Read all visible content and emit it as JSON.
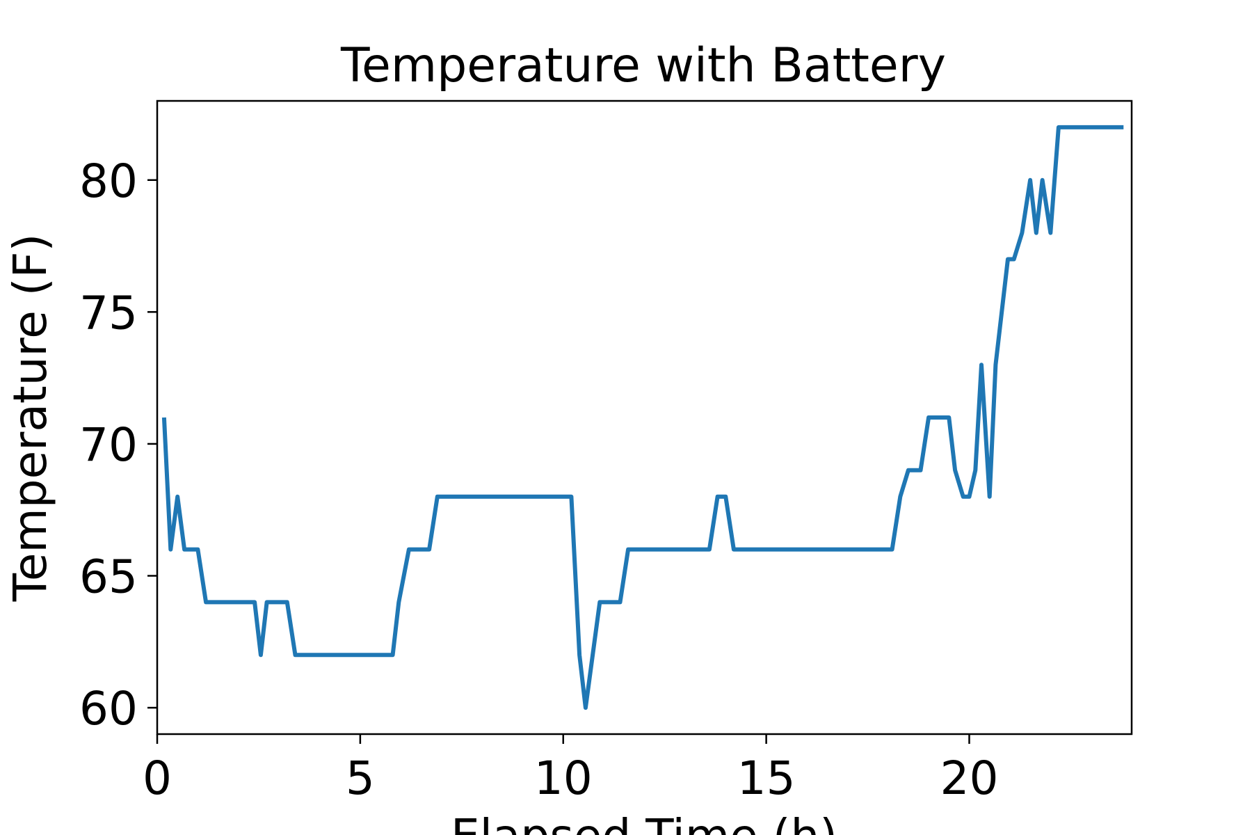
{
  "chart_data": {
    "type": "line",
    "title": "Temperature with Battery",
    "xlabel": "Elapsed Time (h)",
    "ylabel": "Temperature (F)",
    "xlim": [
      0,
      24
    ],
    "ylim": [
      59,
      83
    ],
    "xticks": [
      0,
      5,
      10,
      15,
      20
    ],
    "yticks": [
      60,
      65,
      70,
      75,
      80
    ],
    "grid": false,
    "legend": "none",
    "series": [
      {
        "color": "#1f77b4",
        "x": [
          0.17,
          0.33,
          0.5,
          0.67,
          1.0,
          1.2,
          1.5,
          2.0,
          2.4,
          2.55,
          2.7,
          3.0,
          3.2,
          3.4,
          4.0,
          5.0,
          5.8,
          5.95,
          6.2,
          6.5,
          6.7,
          6.9,
          7.5,
          8.5,
          9.5,
          10.2,
          10.4,
          10.55,
          10.9,
          11.0,
          11.4,
          11.6,
          12.0,
          13.0,
          13.6,
          13.8,
          14.0,
          14.2,
          15.0,
          16.0,
          17.0,
          18.1,
          18.3,
          18.5,
          18.8,
          19.0,
          19.5,
          19.65,
          19.85,
          20.0,
          20.15,
          20.3,
          20.5,
          20.65,
          20.95,
          21.1,
          21.3,
          21.5,
          21.65,
          21.8,
          22.0,
          22.2,
          22.5,
          23.0,
          23.8
        ],
        "y": [
          71,
          66,
          68,
          66,
          66,
          64,
          64,
          64,
          64,
          62,
          64,
          64,
          64,
          62,
          62,
          62,
          62,
          64,
          66,
          66,
          66,
          68,
          68,
          68,
          68,
          68,
          62,
          60,
          64,
          64,
          64,
          66,
          66,
          66,
          66,
          68,
          68,
          66,
          66,
          66,
          66,
          66,
          68,
          69,
          69,
          71,
          71,
          69,
          68,
          68,
          69,
          73,
          68,
          73,
          77,
          77,
          78,
          80,
          78,
          80,
          78,
          82,
          82,
          82,
          82
        ]
      }
    ]
  }
}
